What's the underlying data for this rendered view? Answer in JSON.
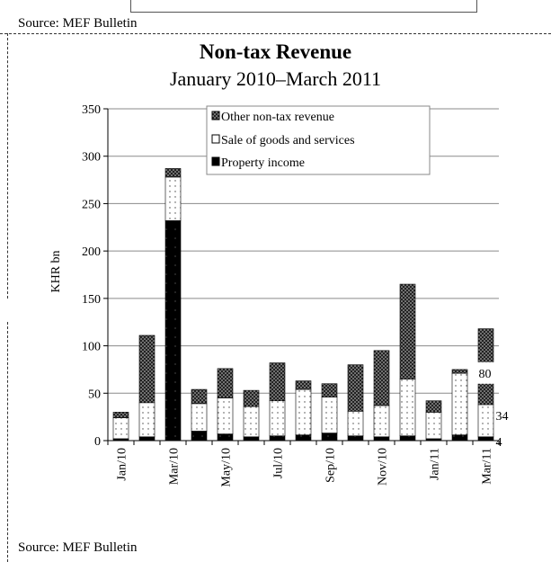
{
  "source_top": "Source: MEF Bulletin",
  "source_bottom": "Source: MEF Bulletin",
  "chart_data": {
    "type": "bar",
    "stacked": true,
    "title": "Non-tax Revenue",
    "subtitle": "January 2010–March 2011",
    "xlabel": "",
    "ylabel": "KHR bn",
    "ylim": [
      0,
      350
    ],
    "yticks": [
      0,
      50,
      100,
      150,
      200,
      250,
      300,
      350
    ],
    "grid": true,
    "legend_position": "top-right",
    "categories": [
      "Jan/10",
      "Feb/10",
      "Mar/10",
      "Apr/10",
      "May/10",
      "Jun/10",
      "Jul/10",
      "Aug/10",
      "Sep/10",
      "Oct/10",
      "Nov/10",
      "Dec/10",
      "Jan/11",
      "Feb/11",
      "Mar/11"
    ],
    "tick_labels": [
      "Jan/10",
      "",
      "Mar/10",
      "",
      "May/10",
      "",
      "Jul/10",
      "",
      "Sep/10",
      "",
      "Nov/10",
      "",
      "Jan/11",
      "",
      "Mar/11"
    ],
    "series": [
      {
        "name": "Property income",
        "values": [
          2,
          4,
          232,
          10,
          7,
          4,
          5,
          6,
          8,
          5,
          4,
          5,
          2,
          6,
          4
        ],
        "pattern": "solid-black"
      },
      {
        "name": "Sale of goods and services",
        "values": [
          22,
          36,
          46,
          29,
          38,
          32,
          37,
          48,
          38,
          26,
          33,
          60,
          28,
          65,
          34
        ],
        "pattern": "white-dots"
      },
      {
        "name": "Other non-tax revenue",
        "values": [
          6,
          71,
          9,
          15,
          31,
          17,
          40,
          9,
          14,
          49,
          58,
          100,
          12,
          4,
          80
        ],
        "pattern": "dark-dots"
      }
    ],
    "data_labels": [
      {
        "category": "Mar/11",
        "series": "Other non-tax revenue",
        "text": "80"
      },
      {
        "category": "Mar/11",
        "series": "Sale of goods and services",
        "text": "34"
      },
      {
        "category": "Mar/11",
        "series": "Property income",
        "text": "4"
      }
    ]
  }
}
